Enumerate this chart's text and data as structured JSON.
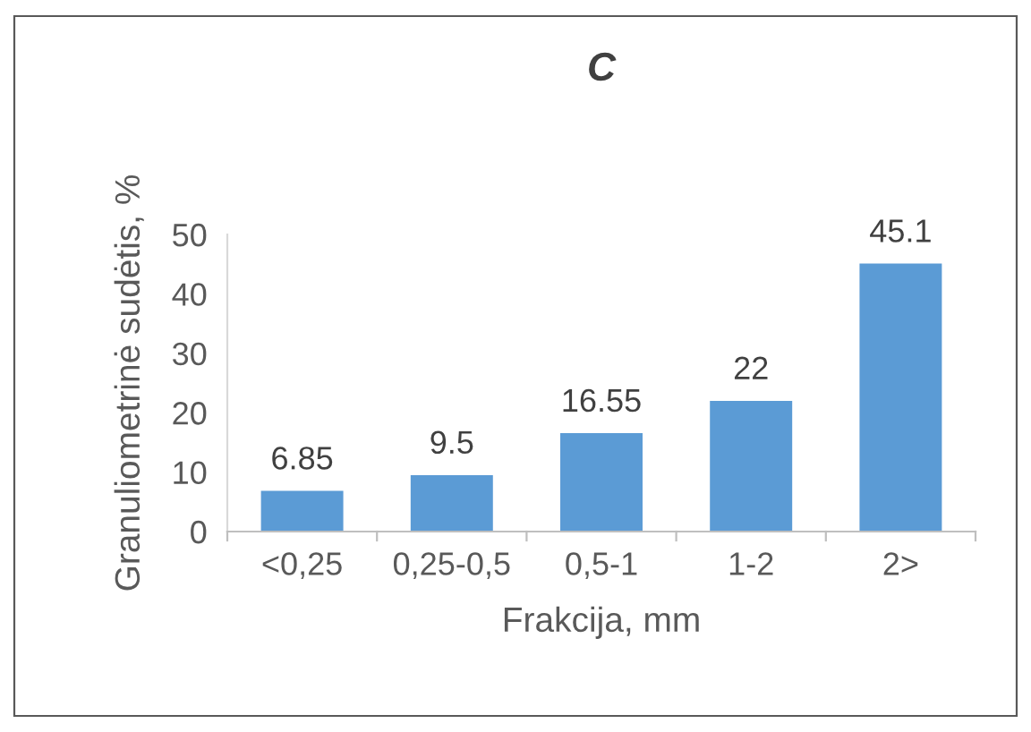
{
  "chart_data": {
    "type": "bar",
    "title": "C",
    "xlabel": "Frakcija, mm",
    "ylabel": "Granuliometrinė sudėtis, %",
    "categories": [
      "<0,25",
      "0,25-0,5",
      "0,5-1",
      "1-2",
      "2>"
    ],
    "values": [
      6.85,
      9.5,
      16.55,
      22,
      45.1
    ],
    "color": "#5b9bd5",
    "ylim": [
      0,
      50
    ],
    "yticks": [
      0,
      10,
      20,
      30,
      40,
      50
    ],
    "grid": false,
    "data_labels": true
  }
}
